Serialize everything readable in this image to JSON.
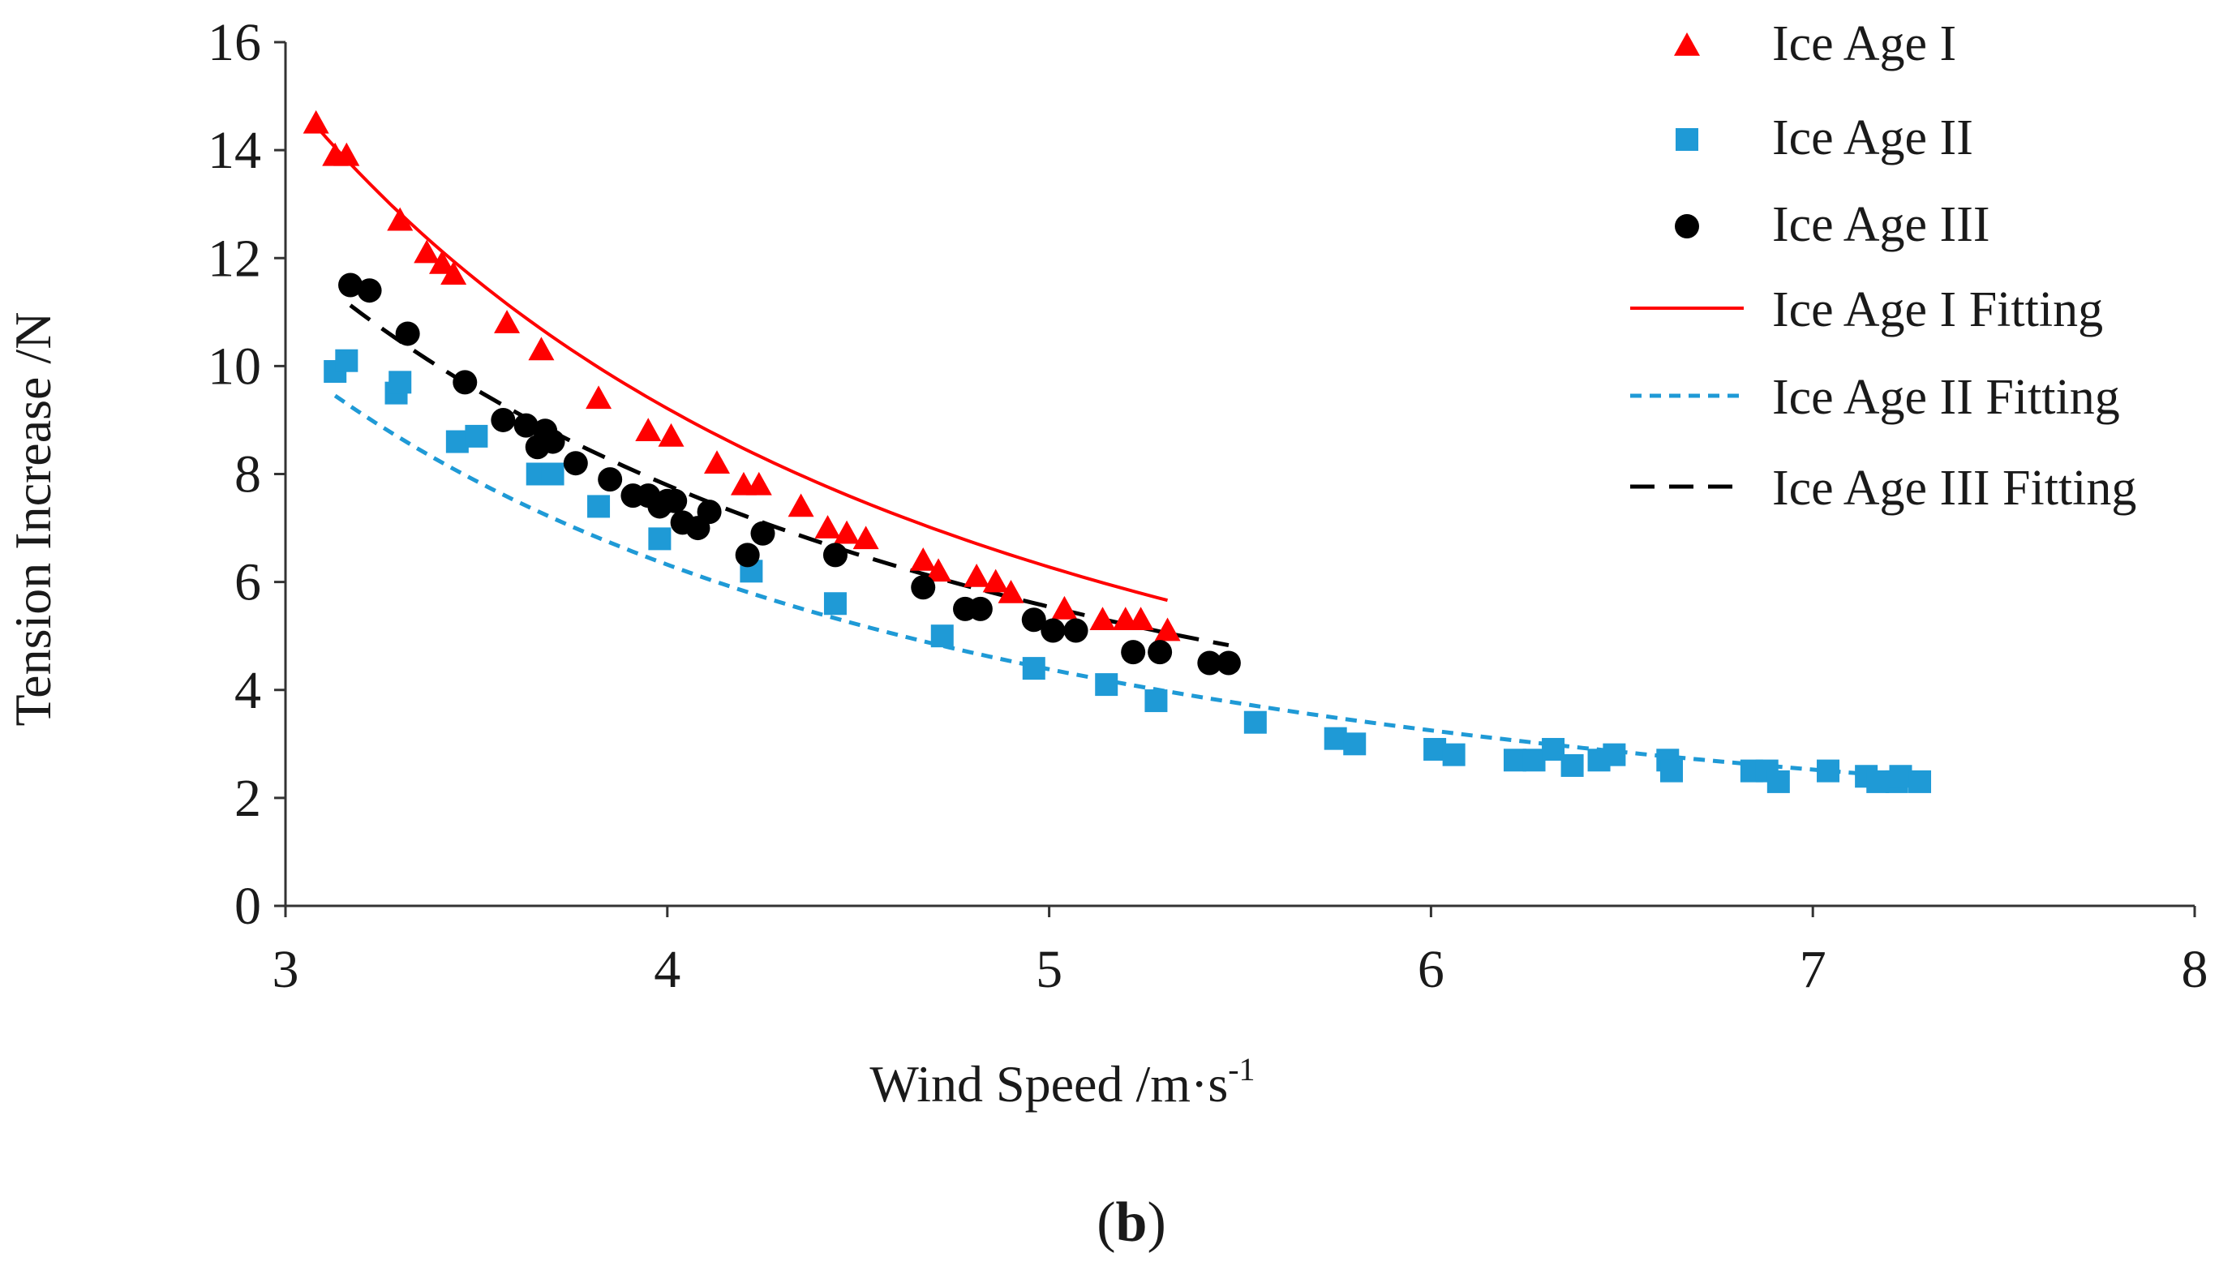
{
  "chart_data": {
    "type": "scatter",
    "title": "",
    "xlabel": "Wind Speed /m·s",
    "xlabel_superscript": "-1",
    "ylabel": "Tension Increase /N",
    "panel_label": "b",
    "panel_label_open": "(",
    "panel_label_close": ")",
    "xlim": [
      3,
      8
    ],
    "ylim": [
      0,
      16
    ],
    "x_ticks": [
      "3",
      "4",
      "5",
      "6",
      "7",
      "8"
    ],
    "y_ticks": [
      "0",
      "2",
      "4",
      "6",
      "8",
      "10",
      "12",
      "14",
      "16"
    ],
    "grid": false,
    "legend_position": "top-right",
    "series": [
      {
        "name": "Ice Age I",
        "marker": "triangle",
        "color": "#ff0000",
        "x": [
          3.08,
          3.13,
          3.16,
          3.3,
          3.37,
          3.41,
          3.44,
          3.58,
          3.67,
          3.82,
          3.95,
          4.01,
          4.13,
          4.2,
          4.24,
          4.35,
          4.42,
          4.47,
          4.52,
          4.67,
          4.71,
          4.81,
          4.86,
          4.9,
          5.04,
          5.14,
          5.2,
          5.24,
          5.31
        ],
        "y": [
          14.5,
          13.9,
          13.9,
          12.7,
          12.1,
          11.9,
          11.7,
          10.8,
          10.3,
          9.4,
          8.8,
          8.7,
          8.2,
          7.8,
          7.8,
          7.4,
          7.0,
          6.9,
          6.8,
          6.4,
          6.2,
          6.1,
          6.0,
          5.8,
          5.5,
          5.3,
          5.3,
          5.3,
          5.1
        ]
      },
      {
        "name": "Ice Age II",
        "marker": "square",
        "color": "#1f9ad6",
        "x": [
          3.13,
          3.16,
          3.29,
          3.3,
          3.45,
          3.5,
          3.66,
          3.7,
          3.82,
          3.98,
          4.22,
          4.44,
          4.72,
          4.96,
          5.15,
          5.28,
          5.54,
          5.75,
          5.8,
          6.01,
          6.06,
          6.22,
          6.27,
          6.32,
          6.37,
          6.44,
          6.48,
          6.62,
          6.63,
          6.84,
          6.88,
          6.91,
          7.04,
          7.14,
          7.17,
          7.22,
          7.23,
          7.28
        ],
        "y": [
          9.9,
          10.1,
          9.5,
          9.7,
          8.6,
          8.7,
          8.0,
          8.0,
          7.4,
          6.8,
          6.2,
          5.6,
          5.0,
          4.4,
          4.1,
          3.8,
          3.4,
          3.1,
          3.0,
          2.9,
          2.8,
          2.7,
          2.7,
          2.9,
          2.6,
          2.7,
          2.8,
          2.7,
          2.5,
          2.5,
          2.5,
          2.3,
          2.5,
          2.4,
          2.3,
          2.3,
          2.4,
          2.3
        ]
      },
      {
        "name": "Ice Age III",
        "marker": "circle",
        "color": "#000000",
        "x": [
          3.17,
          3.22,
          3.32,
          3.47,
          3.57,
          3.63,
          3.66,
          3.68,
          3.7,
          3.76,
          3.85,
          3.91,
          3.95,
          3.98,
          4.0,
          4.02,
          4.04,
          4.08,
          4.11,
          4.21,
          4.25,
          4.44,
          4.67,
          4.78,
          4.82,
          4.96,
          5.01,
          5.07,
          5.22,
          5.29,
          5.42,
          5.47
        ],
        "y": [
          11.5,
          11.4,
          10.6,
          9.7,
          9.0,
          8.9,
          8.5,
          8.8,
          8.6,
          8.2,
          7.9,
          7.6,
          7.6,
          7.4,
          7.5,
          7.5,
          7.1,
          7.0,
          7.3,
          6.5,
          6.9,
          6.5,
          5.9,
          5.5,
          5.5,
          5.3,
          5.1,
          5.1,
          4.7,
          4.7,
          4.5,
          4.5
        ]
      }
    ],
    "fits": [
      {
        "name": "Ice Age I Fitting",
        "style": "solid",
        "color": "#ff0000",
        "x_range": [
          3.08,
          5.31
        ],
        "a": 100.0,
        "b": 1.72
      },
      {
        "name": "Ice Age II Fitting",
        "style": "dotted",
        "color": "#1f9ad6",
        "x_range": [
          3.13,
          7.28
        ],
        "a": 61.4,
        "b": 1.64
      },
      {
        "name": "Ice Age III Fitting",
        "style": "dashed",
        "color": "#000000",
        "x_range": [
          3.17,
          5.47
        ],
        "a": 65.0,
        "b": 1.53
      }
    ],
    "fit_model": "y = a * x^(-b)"
  }
}
